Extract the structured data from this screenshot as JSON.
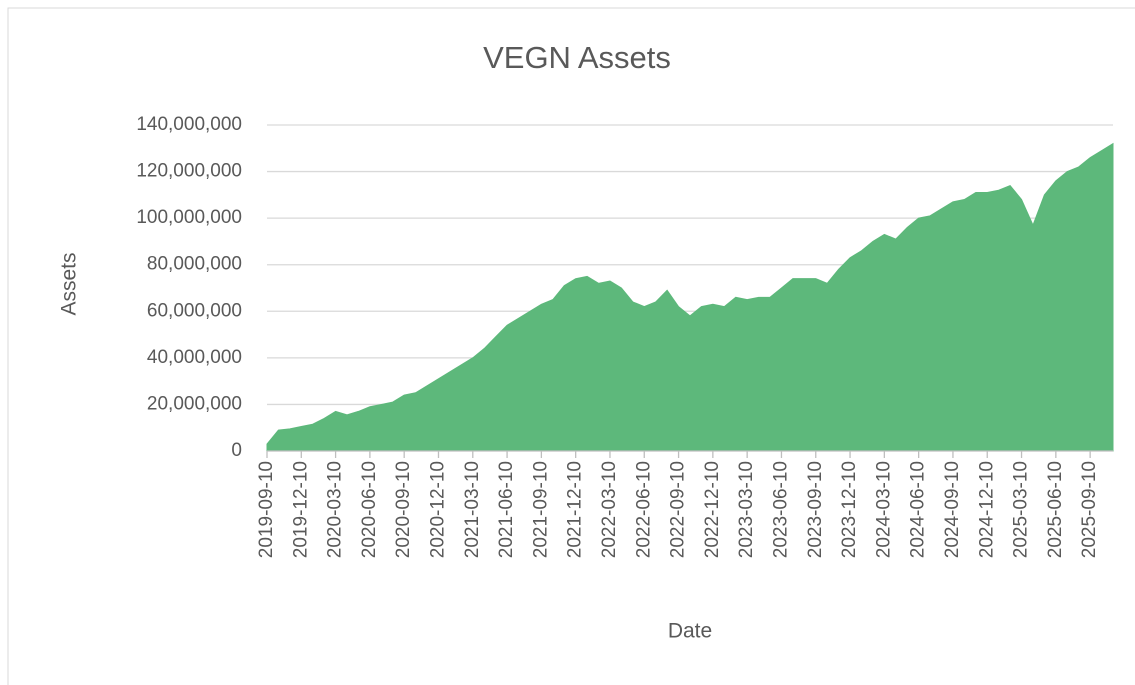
{
  "chart_data": {
    "type": "area",
    "title": "VEGN Assets",
    "x_label": "Date",
    "y_label": "Assets",
    "color": "#5db87b",
    "grid": true,
    "x": [
      "2019-09-10",
      "2019-10-10",
      "2019-11-10",
      "2019-12-10",
      "2020-01-10",
      "2020-02-10",
      "2020-03-10",
      "2020-04-10",
      "2020-05-10",
      "2020-06-10",
      "2020-07-10",
      "2020-08-10",
      "2020-09-10",
      "2020-10-10",
      "2020-11-10",
      "2020-12-10",
      "2021-01-10",
      "2021-02-10",
      "2021-03-10",
      "2021-04-10",
      "2021-05-10",
      "2021-06-10",
      "2021-07-10",
      "2021-08-10",
      "2021-09-10",
      "2021-10-10",
      "2021-11-10",
      "2021-12-10",
      "2022-01-10",
      "2022-02-10",
      "2022-03-10",
      "2022-04-10",
      "2022-05-10",
      "2022-06-10",
      "2022-07-10",
      "2022-08-10",
      "2022-09-10",
      "2022-10-10",
      "2022-11-10",
      "2022-12-10",
      "2023-01-10",
      "2023-02-10",
      "2023-03-10",
      "2023-04-10",
      "2023-05-10",
      "2023-06-10",
      "2023-07-10",
      "2023-08-10",
      "2023-09-10",
      "2023-10-10",
      "2023-11-10",
      "2023-12-10",
      "2024-01-10",
      "2024-02-10",
      "2024-03-10",
      "2024-04-10",
      "2024-05-10",
      "2024-06-10",
      "2024-07-10",
      "2024-08-10",
      "2024-09-10",
      "2024-10-10",
      "2024-11-10",
      "2024-12-10",
      "2025-01-10",
      "2025-02-10",
      "2025-03-10",
      "2025-04-10",
      "2025-05-10",
      "2025-06-10",
      "2025-07-10",
      "2025-08-10",
      "2025-09-10",
      "2025-10-10",
      "2025-11-10"
    ],
    "values": [
      3000000,
      9000000,
      9500000,
      10500000,
      11500000,
      14000000,
      17000000,
      15500000,
      17000000,
      19000000,
      20000000,
      21000000,
      24000000,
      25000000,
      28000000,
      31000000,
      34000000,
      37000000,
      40000000,
      44000000,
      49000000,
      54000000,
      57000000,
      60000000,
      63000000,
      65000000,
      71000000,
      74000000,
      75000000,
      72000000,
      73000000,
      70000000,
      64000000,
      62000000,
      64000000,
      69000000,
      62000000,
      58000000,
      62000000,
      63000000,
      62000000,
      66000000,
      65000000,
      66000000,
      66000000,
      70000000,
      74000000,
      74000000,
      74000000,
      72000000,
      78000000,
      83000000,
      86000000,
      90000000,
      93000000,
      91000000,
      96000000,
      100000000,
      101000000,
      104000000,
      107000000,
      108000000,
      111000000,
      111000000,
      112000000,
      114000000,
      108000000,
      97000000,
      110000000,
      116000000,
      120000000,
      122000000,
      126000000,
      129000000,
      132000000
    ],
    "xticks": [
      "2019-09-10",
      "2019-12-10",
      "2020-03-10",
      "2020-06-10",
      "2020-09-10",
      "2020-12-10",
      "2021-03-10",
      "2021-06-10",
      "2021-09-10",
      "2021-12-10",
      "2022-03-10",
      "2022-06-10",
      "2022-09-10",
      "2022-12-10",
      "2023-03-10",
      "2023-06-10",
      "2023-09-10",
      "2023-12-10",
      "2024-03-10",
      "2024-06-10",
      "2024-09-10",
      "2024-12-10",
      "2025-03-10",
      "2025-06-10",
      "2025-09-10"
    ],
    "ylim": [
      0,
      140000000
    ],
    "yticks": [
      0,
      {
        "value": 20000000,
        "label": "20,000,000"
      },
      {
        "value": 40000000,
        "label": "40,000,000"
      },
      {
        "value": 60000000,
        "label": "60,000,000"
      },
      {
        "value": 80000000,
        "label": "80,000,000"
      },
      {
        "value": 100000000,
        "label": "100,000,000"
      },
      {
        "value": 120000000,
        "label": "120,000,000"
      },
      {
        "value": 140000000,
        "label": "140,000,000"
      }
    ]
  }
}
